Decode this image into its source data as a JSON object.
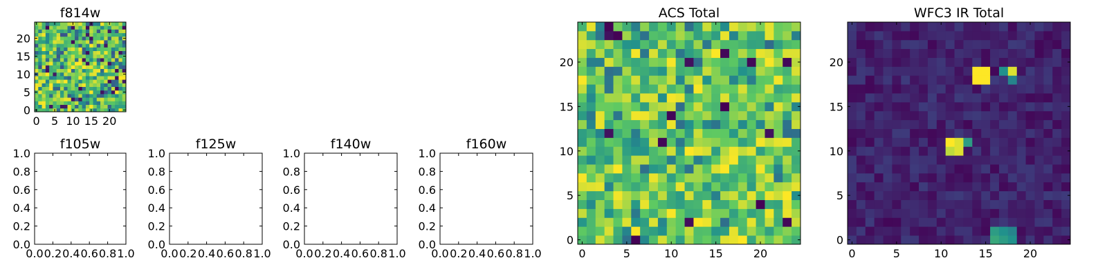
{
  "colormap": {
    "name": "viridis",
    "stops": [
      "#440154",
      "#3b528b",
      "#21918c",
      "#5ec962",
      "#fde725"
    ]
  },
  "chart_data": [
    {
      "type": "heatmap",
      "title": "f814w",
      "xlim": [
        -0.5,
        24.5
      ],
      "ylim": [
        -0.5,
        24.5
      ],
      "xticks": [
        "0",
        "5",
        "10",
        "15",
        "20"
      ],
      "yticks": [
        "0",
        "5",
        "10",
        "15",
        "20"
      ],
      "grid_size": 25,
      "grid": false,
      "description_values": "noisy pixel map, predominantly green-yellow with scattered blue and purple pixels"
    },
    {
      "type": "heatmap",
      "title": "f105w",
      "xlim": [
        0,
        1
      ],
      "ylim": [
        0,
        1
      ],
      "xticks": [
        "0.0",
        "0.2",
        "0.4",
        "0.6",
        "0.8",
        "1.0"
      ],
      "yticks": [
        "0.0",
        "0.2",
        "0.4",
        "0.6",
        "0.8",
        "1.0"
      ],
      "empty": true
    },
    {
      "type": "heatmap",
      "title": "f125w",
      "xlim": [
        0,
        1
      ],
      "ylim": [
        0,
        1
      ],
      "xticks": [
        "0.0",
        "0.2",
        "0.4",
        "0.6",
        "0.8",
        "1.0"
      ],
      "yticks": [
        "0.0",
        "0.2",
        "0.4",
        "0.6",
        "0.8",
        "1.0"
      ],
      "empty": true
    },
    {
      "type": "heatmap",
      "title": "f140w",
      "xlim": [
        0,
        1
      ],
      "ylim": [
        0,
        1
      ],
      "xticks": [
        "0.0",
        "0.2",
        "0.4",
        "0.6",
        "0.8",
        "1.0"
      ],
      "yticks": [
        "0.0",
        "0.2",
        "0.4",
        "0.6",
        "0.8",
        "1.0"
      ],
      "empty": true
    },
    {
      "type": "heatmap",
      "title": "f160w",
      "xlim": [
        0,
        1
      ],
      "ylim": [
        0,
        1
      ],
      "xticks": [
        "0.0",
        "0.2",
        "0.4",
        "0.6",
        "0.8",
        "1.0"
      ],
      "yticks": [
        "0.0",
        "0.2",
        "0.4",
        "0.6",
        "0.8",
        "1.0"
      ],
      "empty": true
    },
    {
      "type": "heatmap",
      "title": "ACS Total",
      "xlim": [
        -0.5,
        24.5
      ],
      "ylim": [
        -0.5,
        24.5
      ],
      "xticks": [
        "0",
        "5",
        "10",
        "15",
        "20"
      ],
      "yticks": [
        "0",
        "5",
        "10",
        "15",
        "20"
      ],
      "grid_size": 25,
      "grid": false,
      "description_values": "noisy pixel map, mostly green with yellow patches and a few dark purple pixels"
    },
    {
      "type": "heatmap",
      "title": "WFC3 IR Total",
      "xlim": [
        -0.5,
        24.5
      ],
      "ylim": [
        -0.5,
        24.5
      ],
      "xticks": [
        "0",
        "5",
        "10",
        "15",
        "20"
      ],
      "yticks": [
        "0",
        "5",
        "10",
        "15",
        "20"
      ],
      "grid_size": 25,
      "grid": false,
      "description_values": "dark purple background",
      "bright_pixels": [
        {
          "x": 14,
          "y": 18,
          "level": 1.0
        },
        {
          "x": 15,
          "y": 18,
          "level": 1.0
        },
        {
          "x": 14,
          "y": 19,
          "level": 1.0
        },
        {
          "x": 15,
          "y": 19,
          "level": 1.0
        },
        {
          "x": 18,
          "y": 19,
          "level": 0.95
        },
        {
          "x": 17,
          "y": 19,
          "level": 0.5
        },
        {
          "x": 18,
          "y": 18,
          "level": 0.45
        },
        {
          "x": 11,
          "y": 11,
          "level": 1.0
        },
        {
          "x": 12,
          "y": 11,
          "level": 0.95
        },
        {
          "x": 11,
          "y": 10,
          "level": 0.9
        },
        {
          "x": 12,
          "y": 10,
          "level": 0.95
        },
        {
          "x": 13,
          "y": 11,
          "level": 0.55
        },
        {
          "x": 16,
          "y": 1,
          "level": 0.55
        },
        {
          "x": 17,
          "y": 1,
          "level": 0.5
        },
        {
          "x": 18,
          "y": 1,
          "level": 0.45
        },
        {
          "x": 16,
          "y": 0,
          "level": 0.6
        },
        {
          "x": 17,
          "y": 0,
          "level": 0.55
        },
        {
          "x": 18,
          "y": 0,
          "level": 0.5
        }
      ]
    }
  ]
}
